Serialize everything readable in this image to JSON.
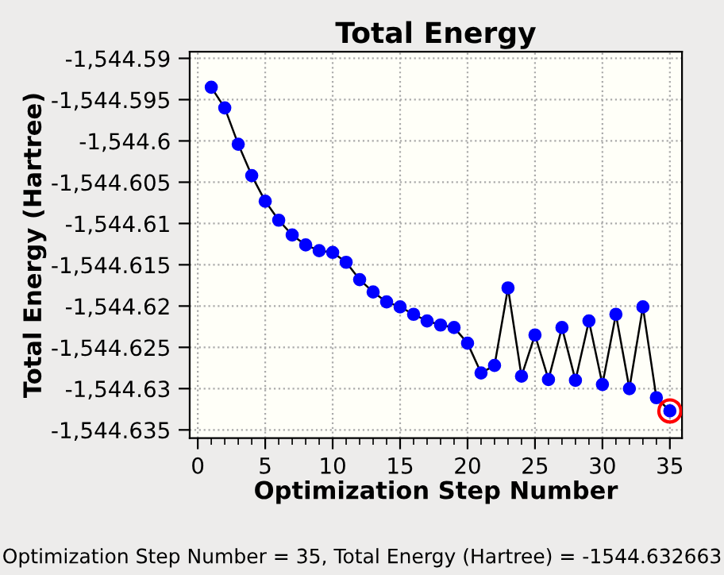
{
  "chart_data": {
    "type": "line",
    "title": "Total Energy",
    "xlabel": "Optimization Step Number",
    "ylabel": "Total Energy (Hartree)",
    "x": [
      1,
      2,
      3,
      4,
      5,
      6,
      7,
      8,
      9,
      10,
      11,
      12,
      13,
      14,
      15,
      16,
      17,
      18,
      19,
      20,
      21,
      22,
      23,
      24,
      25,
      26,
      27,
      28,
      29,
      30,
      31,
      32,
      33,
      34,
      35
    ],
    "series": [
      {
        "color": "#0000ff",
        "values": [
          -1544.5935,
          -1544.596,
          -1544.6004,
          -1544.6042,
          -1544.6073,
          -1544.6096,
          -1544.6114,
          -1544.6126,
          -1544.6133,
          -1544.6135,
          -1544.6147,
          -1544.6168,
          -1544.6183,
          -1544.6195,
          -1544.6201,
          -1544.621,
          -1544.6218,
          -1544.6223,
          -1544.6226,
          -1544.6245,
          -1544.6281,
          -1544.6272,
          -1544.6178,
          -1544.6285,
          -1544.6235,
          -1544.6289,
          -1544.6226,
          -1544.629,
          -1544.6218,
          -1544.6295,
          -1544.621,
          -1544.63,
          -1544.6201,
          -1544.6311,
          -1544.6327
        ]
      }
    ],
    "xlim": [
      -0.6,
      35.9
    ],
    "xticks": [
      0,
      5,
      10,
      15,
      20,
      25,
      30,
      35
    ],
    "ylim": [
      -1544.636,
      -1544.5892
    ],
    "yticks": [
      {
        "value": -1544.59,
        "label": "-1,544.59"
      },
      {
        "value": -1544.595,
        "label": "-1,544.595"
      },
      {
        "value": -1544.6,
        "label": "-1,544.6"
      },
      {
        "value": -1544.605,
        "label": "-1,544.605"
      },
      {
        "value": -1544.61,
        "label": "-1,544.61"
      },
      {
        "value": -1544.615,
        "label": "-1,544.615"
      },
      {
        "value": -1544.62,
        "label": "-1,544.62"
      },
      {
        "value": -1544.625,
        "label": "-1,544.625"
      },
      {
        "value": -1544.63,
        "label": "-1,544.63"
      },
      {
        "value": -1544.635,
        "label": "-1,544.635"
      }
    ],
    "annotations": [
      "Optimization Step Number = 35, Total Energy (Hartree) = -1544.632663"
    ],
    "grid": true,
    "marker": "circle",
    "line_style": "solid",
    "legend": false
  }
}
